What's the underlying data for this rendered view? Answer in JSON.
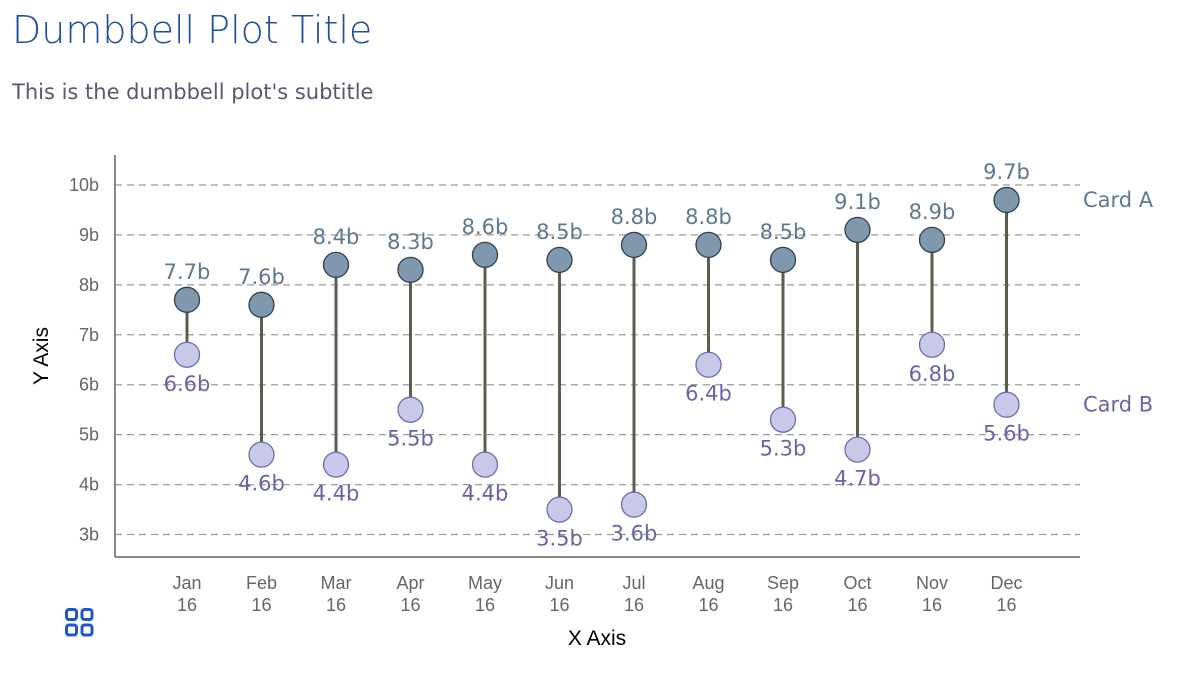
{
  "title": "Dumbbell Plot Title",
  "subtitle": "This is the dumbbell plot's subtitle",
  "chart_data": {
    "type": "dumbbell",
    "xlabel": "X Axis",
    "ylabel": "Y Axis",
    "ylim": [
      2.55,
      10.6
    ],
    "yticks": [
      3,
      4,
      5,
      6,
      7,
      8,
      9,
      10
    ],
    "ytick_labels": [
      "3b",
      "4b",
      "5b",
      "6b",
      "7b",
      "8b",
      "9b",
      "10b"
    ],
    "grid": true,
    "categories": [
      [
        "Jan",
        "16"
      ],
      [
        "Feb",
        "16"
      ],
      [
        "Mar",
        "16"
      ],
      [
        "Apr",
        "16"
      ],
      [
        "May",
        "16"
      ],
      [
        "Jun",
        "16"
      ],
      [
        "Jul",
        "16"
      ],
      [
        "Aug",
        "16"
      ],
      [
        "Sep",
        "16"
      ],
      [
        "Oct",
        "16"
      ],
      [
        "Nov",
        "16"
      ],
      [
        "Dec",
        "16"
      ]
    ],
    "series": [
      {
        "name": "Card A",
        "color": "#7f98ae",
        "label_color": "#5f7890",
        "values": [
          7.7,
          7.6,
          8.4,
          8.3,
          8.6,
          8.5,
          8.8,
          8.8,
          8.5,
          9.1,
          8.9,
          9.7
        ]
      },
      {
        "name": "Card B",
        "color": "#c8c9e8",
        "label_color": "#6466a8",
        "values": [
          6.6,
          4.6,
          4.4,
          5.5,
          4.4,
          3.5,
          3.6,
          6.4,
          5.3,
          4.7,
          6.8,
          5.6
        ]
      }
    ],
    "connector_color": "#5c5e4c",
    "legend": "right"
  },
  "icons": {
    "menu": "grid-icon"
  }
}
